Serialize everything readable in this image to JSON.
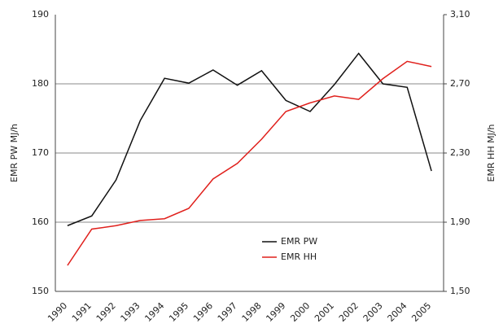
{
  "chart_data": {
    "type": "line",
    "categories": [
      "1990",
      "1991",
      "1992",
      "1993",
      "1994",
      "1995",
      "1996",
      "1997",
      "1998",
      "1999",
      "2000",
      "2001",
      "2002",
      "2003",
      "2004",
      "2005"
    ],
    "ylabel": "EMR PW MJ/h",
    "y2label": "EMR HH MJ/h",
    "ylim": [
      150,
      190
    ],
    "yticks": [
      150,
      160,
      170,
      180,
      190
    ],
    "y2lim": [
      1.5,
      3.1
    ],
    "y2ticks": [
      {
        "value": 1.5,
        "label": "1,50"
      },
      {
        "value": 1.9,
        "label": "1,90"
      },
      {
        "value": 2.3,
        "label": "2,30"
      },
      {
        "value": 2.7,
        "label": "2,70"
      },
      {
        "value": 3.1,
        "label": "3,10"
      }
    ],
    "grid": true,
    "series": [
      {
        "name": "EMR PW",
        "color": "#111111",
        "values": [
          159.5,
          160.9,
          166.1,
          174.7,
          180.8,
          180.1,
          182.0,
          179.8,
          181.9,
          177.6,
          176.0,
          179.9,
          184.4,
          180.0,
          179.5,
          167.4
        ]
      },
      {
        "name": "EMR HH",
        "color": "#e0201c",
        "axis": "y2",
        "values": [
          1.65,
          1.86,
          1.88,
          1.91,
          1.92,
          1.98,
          2.15,
          2.24,
          2.38,
          2.54,
          2.59,
          2.63,
          2.61,
          2.73,
          2.83,
          2.8
        ]
      }
    ]
  }
}
